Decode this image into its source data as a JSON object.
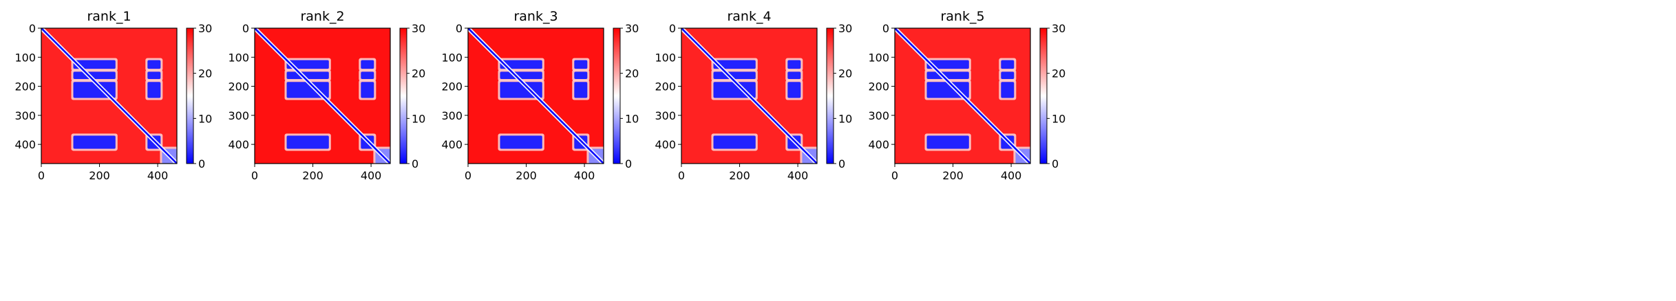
{
  "figure": {
    "background": "#ffffff",
    "colormap": {
      "name": "bwr",
      "low": "#0000ff",
      "mid": "#ffffff",
      "high": "#ff0000"
    }
  },
  "chart_data": [
    {
      "type": "heatmap",
      "title": "rank_1",
      "matrix_size": 466,
      "xlim": [
        0,
        466
      ],
      "ylim": [
        466,
        0
      ],
      "xticks": [
        0,
        200,
        400
      ],
      "yticks": [
        0,
        100,
        200,
        300,
        400
      ],
      "colorbar": {
        "min": 0,
        "max": 30,
        "ticks": [
          0,
          10,
          20,
          30
        ]
      },
      "background_value": 28,
      "diagonal_value": 0,
      "low_blocks": [
        {
          "x": [
            110,
            255
          ],
          "y": [
            110,
            140
          ],
          "value": 2
        },
        {
          "x": [
            110,
            255
          ],
          "y": [
            150,
            175
          ],
          "value": 2
        },
        {
          "x": [
            110,
            255
          ],
          "y": [
            185,
            240
          ],
          "value": 2
        },
        {
          "x": [
            365,
            410
          ],
          "y": [
            110,
            140
          ],
          "value": 2
        },
        {
          "x": [
            365,
            410
          ],
          "y": [
            150,
            175
          ],
          "value": 2
        },
        {
          "x": [
            365,
            410
          ],
          "y": [
            185,
            240
          ],
          "value": 2
        },
        {
          "x": [
            110,
            255
          ],
          "y": [
            370,
            415
          ],
          "value": 2
        },
        {
          "x": [
            365,
            410
          ],
          "y": [
            370,
            415
          ],
          "value": 2
        },
        {
          "x": [
            415,
            466
          ],
          "y": [
            415,
            466
          ],
          "value": 8
        }
      ]
    },
    {
      "type": "heatmap",
      "title": "rank_2",
      "matrix_size": 466,
      "xlim": [
        0,
        466
      ],
      "ylim": [
        466,
        0
      ],
      "xticks": [
        0,
        200,
        400
      ],
      "yticks": [
        0,
        100,
        200,
        300,
        400
      ],
      "colorbar": {
        "min": 0,
        "max": 30,
        "ticks": [
          0,
          10,
          20,
          30
        ]
      },
      "background_value": 29,
      "diagonal_value": 0,
      "low_blocks": [
        {
          "x": [
            110,
            255
          ],
          "y": [
            110,
            140
          ],
          "value": 2
        },
        {
          "x": [
            110,
            255
          ],
          "y": [
            150,
            175
          ],
          "value": 2
        },
        {
          "x": [
            110,
            255
          ],
          "y": [
            185,
            240
          ],
          "value": 2
        },
        {
          "x": [
            365,
            410
          ],
          "y": [
            110,
            140
          ],
          "value": 2
        },
        {
          "x": [
            365,
            410
          ],
          "y": [
            150,
            175
          ],
          "value": 2
        },
        {
          "x": [
            365,
            410
          ],
          "y": [
            185,
            240
          ],
          "value": 2
        },
        {
          "x": [
            110,
            255
          ],
          "y": [
            370,
            415
          ],
          "value": 2
        },
        {
          "x": [
            365,
            410
          ],
          "y": [
            370,
            415
          ],
          "value": 2
        },
        {
          "x": [
            415,
            466
          ],
          "y": [
            415,
            466
          ],
          "value": 8
        }
      ]
    },
    {
      "type": "heatmap",
      "title": "rank_3",
      "matrix_size": 466,
      "xlim": [
        0,
        466
      ],
      "ylim": [
        466,
        0
      ],
      "xticks": [
        0,
        200,
        400
      ],
      "yticks": [
        0,
        100,
        200,
        300,
        400
      ],
      "colorbar": {
        "min": 0,
        "max": 30,
        "ticks": [
          0,
          10,
          20,
          30
        ]
      },
      "background_value": 29,
      "diagonal_value": 0,
      "low_blocks": [
        {
          "x": [
            110,
            255
          ],
          "y": [
            110,
            140
          ],
          "value": 2
        },
        {
          "x": [
            110,
            255
          ],
          "y": [
            150,
            175
          ],
          "value": 2
        },
        {
          "x": [
            110,
            255
          ],
          "y": [
            185,
            240
          ],
          "value": 2
        },
        {
          "x": [
            365,
            410
          ],
          "y": [
            110,
            140
          ],
          "value": 2
        },
        {
          "x": [
            365,
            410
          ],
          "y": [
            150,
            175
          ],
          "value": 2
        },
        {
          "x": [
            365,
            410
          ],
          "y": [
            185,
            240
          ],
          "value": 2
        },
        {
          "x": [
            110,
            255
          ],
          "y": [
            370,
            415
          ],
          "value": 2
        },
        {
          "x": [
            365,
            410
          ],
          "y": [
            370,
            415
          ],
          "value": 2
        },
        {
          "x": [
            415,
            466
          ],
          "y": [
            415,
            466
          ],
          "value": 8
        }
      ]
    },
    {
      "type": "heatmap",
      "title": "rank_4",
      "matrix_size": 466,
      "xlim": [
        0,
        466
      ],
      "ylim": [
        466,
        0
      ],
      "xticks": [
        0,
        200,
        400
      ],
      "yticks": [
        0,
        100,
        200,
        300,
        400
      ],
      "colorbar": {
        "min": 0,
        "max": 30,
        "ticks": [
          0,
          10,
          20,
          30
        ]
      },
      "background_value": 28,
      "diagonal_value": 0,
      "low_blocks": [
        {
          "x": [
            110,
            255
          ],
          "y": [
            110,
            140
          ],
          "value": 2
        },
        {
          "x": [
            110,
            255
          ],
          "y": [
            150,
            175
          ],
          "value": 2
        },
        {
          "x": [
            110,
            255
          ],
          "y": [
            185,
            240
          ],
          "value": 2
        },
        {
          "x": [
            365,
            410
          ],
          "y": [
            110,
            140
          ],
          "value": 2
        },
        {
          "x": [
            365,
            410
          ],
          "y": [
            150,
            175
          ],
          "value": 2
        },
        {
          "x": [
            365,
            410
          ],
          "y": [
            185,
            240
          ],
          "value": 2
        },
        {
          "x": [
            110,
            255
          ],
          "y": [
            370,
            415
          ],
          "value": 2
        },
        {
          "x": [
            365,
            410
          ],
          "y": [
            370,
            415
          ],
          "value": 2
        },
        {
          "x": [
            415,
            466
          ],
          "y": [
            415,
            466
          ],
          "value": 8
        }
      ]
    },
    {
      "type": "heatmap",
      "title": "rank_5",
      "matrix_size": 466,
      "xlim": [
        0,
        466
      ],
      "ylim": [
        466,
        0
      ],
      "xticks": [
        0,
        200,
        400
      ],
      "yticks": [
        0,
        100,
        200,
        300,
        400
      ],
      "colorbar": {
        "min": 0,
        "max": 30,
        "ticks": [
          0,
          10,
          20,
          30
        ]
      },
      "background_value": 28,
      "diagonal_value": 0,
      "low_blocks": [
        {
          "x": [
            110,
            255
          ],
          "y": [
            110,
            140
          ],
          "value": 2
        },
        {
          "x": [
            110,
            255
          ],
          "y": [
            150,
            175
          ],
          "value": 2
        },
        {
          "x": [
            110,
            255
          ],
          "y": [
            185,
            240
          ],
          "value": 2
        },
        {
          "x": [
            365,
            410
          ],
          "y": [
            110,
            140
          ],
          "value": 2
        },
        {
          "x": [
            365,
            410
          ],
          "y": [
            150,
            175
          ],
          "value": 2
        },
        {
          "x": [
            365,
            410
          ],
          "y": [
            185,
            240
          ],
          "value": 2
        },
        {
          "x": [
            110,
            255
          ],
          "y": [
            370,
            415
          ],
          "value": 2
        },
        {
          "x": [
            365,
            410
          ],
          "y": [
            370,
            415
          ],
          "value": 2
        },
        {
          "x": [
            415,
            466
          ],
          "y": [
            415,
            466
          ],
          "value": 8
        }
      ]
    }
  ]
}
